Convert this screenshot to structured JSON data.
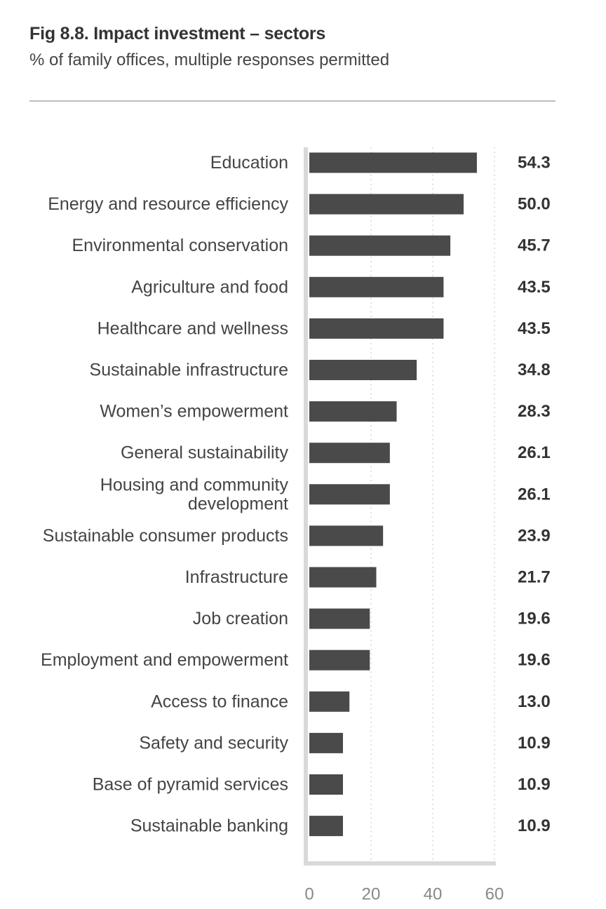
{
  "header": {
    "title": "Fig 8.8. Impact investment – sectors",
    "subtitle": "% of family offices, multiple responses permitted"
  },
  "chart_data": {
    "type": "bar",
    "orientation": "horizontal",
    "title": "Fig 8.8. Impact investment – sectors",
    "subtitle": "% of family offices, multiple responses permitted",
    "categories": [
      "Education",
      "Energy and resource efficiency",
      "Environmental conservation",
      "Agriculture and food",
      "Healthcare and wellness",
      "Sustainable infrastructure",
      "Women’s empowerment",
      "General sustainability",
      "Housing and community development",
      "Sustainable consumer products",
      "Infrastructure",
      "Job creation",
      "Employment and empowerment",
      "Access to finance",
      "Safety and security",
      "Base of pyramid services",
      "Sustainable banking"
    ],
    "category_lines": [
      [
        "Education"
      ],
      [
        "Energy and resource efficiency"
      ],
      [
        "Environmental conservation"
      ],
      [
        "Agriculture and food"
      ],
      [
        "Healthcare and wellness"
      ],
      [
        "Sustainable infrastructure"
      ],
      [
        "Women’s empowerment"
      ],
      [
        "General sustainability"
      ],
      [
        "Housing and community",
        "development"
      ],
      [
        "Sustainable consumer products"
      ],
      [
        "Infrastructure"
      ],
      [
        "Job creation"
      ],
      [
        "Employment and empowerment"
      ],
      [
        "Access to finance"
      ],
      [
        "Safety and security"
      ],
      [
        "Base of pyramid services"
      ],
      [
        "Sustainable banking"
      ]
    ],
    "values": [
      54.3,
      50.0,
      45.7,
      43.5,
      43.5,
      34.8,
      28.3,
      26.1,
      26.1,
      23.9,
      21.7,
      19.6,
      19.6,
      13.0,
      10.9,
      10.9,
      10.9
    ],
    "value_labels": [
      "54.3",
      "50.0",
      "45.7",
      "43.5",
      "43.5",
      "34.8",
      "28.3",
      "26.1",
      "26.1",
      "23.9",
      "21.7",
      "19.6",
      "19.6",
      "13.0",
      "10.9",
      "10.9",
      "10.9"
    ],
    "xlim": [
      0,
      60
    ],
    "xticks": [
      0,
      20,
      40,
      60
    ],
    "xtick_labels": [
      "0",
      "20",
      "40",
      "60"
    ],
    "grid": "vertical dotted",
    "colors": {
      "bar": "#4a4a4a",
      "axis": "#d9d9d9",
      "grid": "#bfbfbf",
      "rule": "#bdbdbd"
    }
  }
}
